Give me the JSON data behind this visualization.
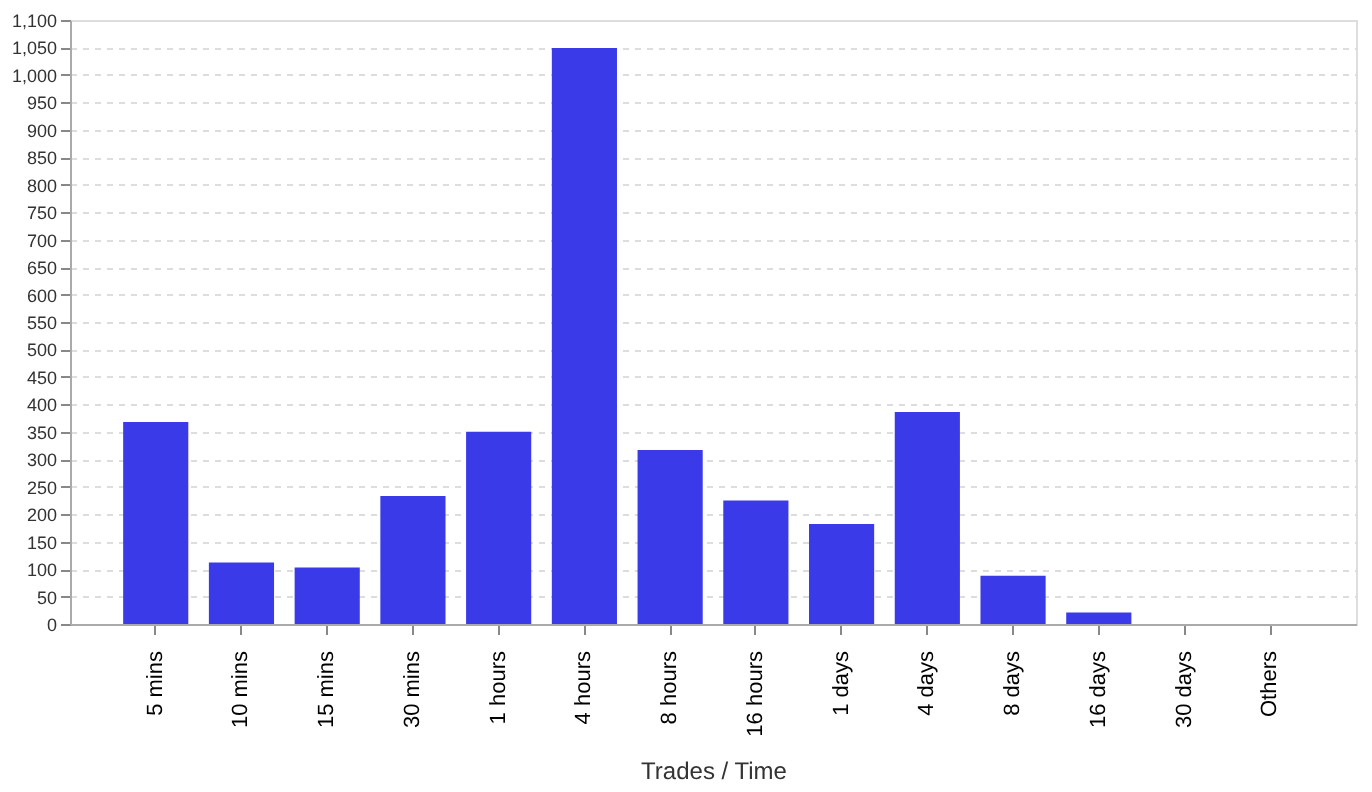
{
  "chart_data": {
    "type": "bar",
    "xlabel": "Trades / Time",
    "categories": [
      "5 mins",
      "10 mins",
      "15 mins",
      "30 mins",
      "1 hours",
      "4 hours",
      "8 hours",
      "16 hours",
      "1 days",
      "4 days",
      "8 days",
      "16 days",
      "30 days",
      "Others"
    ],
    "values": [
      368,
      112,
      103,
      233,
      350,
      1049,
      317,
      225,
      182,
      386,
      88,
      21,
      0,
      0
    ],
    "color": "#3a3ae8",
    "ylim": [
      0,
      1100
    ],
    "yticks": [
      0,
      50,
      100,
      150,
      200,
      250,
      300,
      350,
      400,
      450,
      500,
      550,
      600,
      650,
      700,
      750,
      800,
      850,
      900,
      950,
      {
        "value": 1000,
        "label": "1,000"
      },
      {
        "value": 1050,
        "label": "1,050"
      },
      {
        "value": 1100,
        "label": "1,100"
      }
    ],
    "grid": "y"
  }
}
